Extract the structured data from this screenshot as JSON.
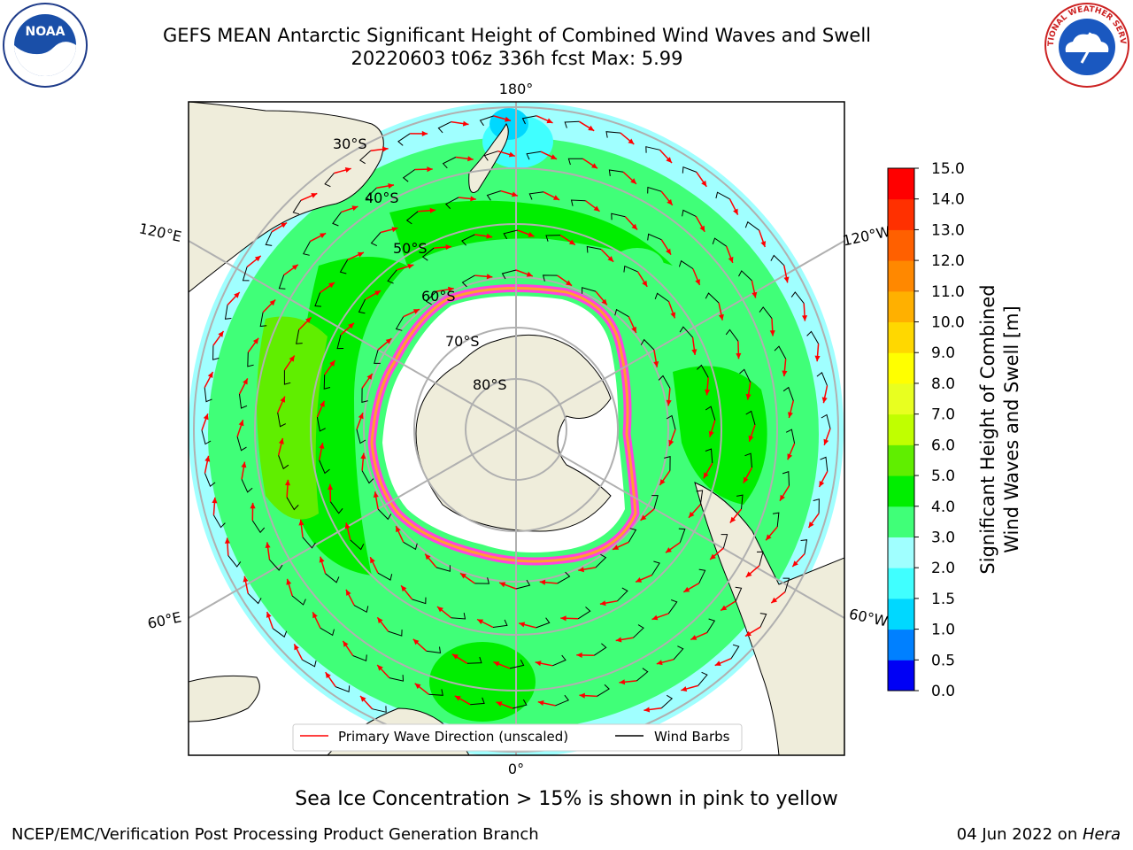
{
  "title": {
    "line1": "GEFS MEAN Antarctic Significant Height of Combined Wind Waves and Swell",
    "line2": "20220603 t06z 336h fcst   Max: 5.99"
  },
  "logos": {
    "left": "NOAA",
    "right": "NATIONAL WEATHER SERVICE"
  },
  "map": {
    "projection": "south-polar-stereographic",
    "longitude_labels": {
      "top": "180°",
      "bottom": "0°",
      "upper_left": "120°E",
      "upper_right": "120°W",
      "lower_left": "60°E",
      "lower_right": "60°W"
    },
    "latitude_labels": [
      "30°S",
      "40°S",
      "50°S",
      "60°S",
      "70°S",
      "80°S"
    ],
    "land_color": "#efeddb",
    "ice_sheet_color": "#ffffff"
  },
  "legend": {
    "wave_direction": "Primary Wave Direction (unscaled)",
    "wind_barbs": "Wind Barbs"
  },
  "colorbar": {
    "label_line1": "Significant Height of Combined",
    "label_line2": "Wind Waves and Swell [m]",
    "ticks": [
      "0.0",
      "0.5",
      "1.0",
      "1.5",
      "2.0",
      "3.0",
      "4.0",
      "5.0",
      "6.0",
      "7.0",
      "8.0",
      "9.0",
      "10.0",
      "11.0",
      "12.0",
      "13.0",
      "14.0",
      "15.0"
    ],
    "colors": [
      "#0000f5",
      "#0080ff",
      "#00d8ff",
      "#40ffff",
      "#a0ffff",
      "#40ff78",
      "#00ee00",
      "#60ee00",
      "#c0ff00",
      "#e8ff20",
      "#ffff00",
      "#ffd800",
      "#ffb000",
      "#ff8800",
      "#ff6000",
      "#ff3000",
      "#ff0000"
    ]
  },
  "chart_data": {
    "type": "heatmap",
    "title": "GEFS MEAN Antarctic Significant Height of Combined Wind Waves and Swell",
    "subtitle": "20220603 t06z 336h fcst   Max: 5.99",
    "variable": "Significant Height of Combined Wind Waves and Swell [m]",
    "max": 5.99,
    "color_scale_range": [
      0,
      15
    ]
  },
  "footer": {
    "note": "Sea Ice Concentration > 15% is shown in pink to yellow",
    "credit": "NCEP/EMC/Verification Post Processing Product Generation Branch",
    "date": "04 Jun 2022 on ",
    "machine": "Hera"
  }
}
